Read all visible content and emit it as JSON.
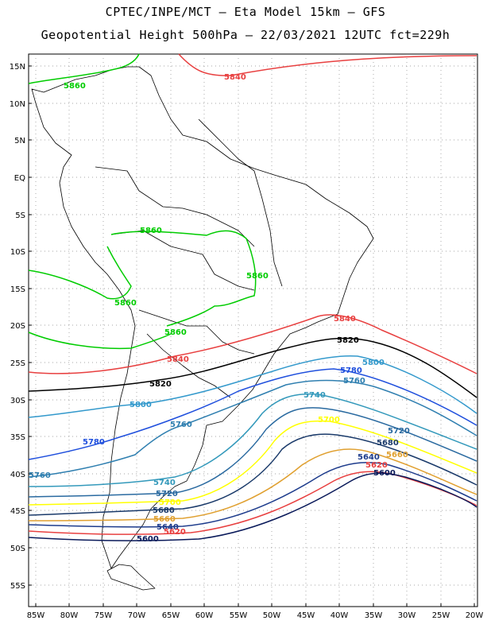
{
  "title": {
    "line1": "CPTEC/INPE/MCT –  Eta Model 15km – GFS",
    "line2": "Geopotential Height 500hPa – 22/03/2021 12UTC fct=229h"
  },
  "axes": {
    "lat_labels": [
      "15N",
      "10N",
      "5N",
      "EQ",
      "5S",
      "10S",
      "15S",
      "20S",
      "25S",
      "30S",
      "35S",
      "40S",
      "45S",
      "50S",
      "55S"
    ],
    "lon_labels": [
      "85W",
      "80W",
      "75W",
      "70W",
      "65W",
      "60W",
      "55W",
      "50W",
      "45W",
      "40W",
      "35W",
      "30W",
      "25W",
      "20W"
    ]
  },
  "colors": {
    "c5860": "#00cc00",
    "c5840": "#e84040",
    "c5820": "#000000",
    "c5800": "#3399cc",
    "c5780": "#1f4fdd",
    "c5760": "#2f7fb0",
    "c5740": "#3399bb",
    "c5720": "#2a6aa0",
    "c5700": "#ffff00",
    "c5680": "#1a3a6a",
    "c5660": "#e0a030",
    "c5640": "#1e3c8c",
    "c5620": "#e84040",
    "c5600": "#0a1a5a"
  },
  "contours": {
    "c5860_a": "5860",
    "c5860_b": "5860",
    "c5860_c": "5860",
    "c5860_d": "5860",
    "c5860_e": "5860",
    "c5840_a": "5840",
    "c5840_b": "5840",
    "c5840_c": "5840",
    "c5820_a": "5820",
    "c5820_b": "5820",
    "c5800_a": "5800",
    "c5800_b": "5800",
    "c5780_a": "5780",
    "c5780_b": "5780",
    "c5760_a": "5760",
    "c5760_b": "5760",
    "c5760_c": "5760",
    "c5740_a": "5740",
    "c5740_b": "5740",
    "c5720_a": "5720",
    "c5720_b": "5720",
    "c5700_a": "5700",
    "c5700_b": "5700",
    "c5680_a": "5680",
    "c5680_b": "5680",
    "c5660_a": "5660",
    "c5660_b": "5660",
    "c5640_a": "5640",
    "c5640_b": "5640",
    "c5620_a": "5620",
    "c5620_b": "5620",
    "c5600_a": "5600",
    "c5600_b": "5600"
  }
}
